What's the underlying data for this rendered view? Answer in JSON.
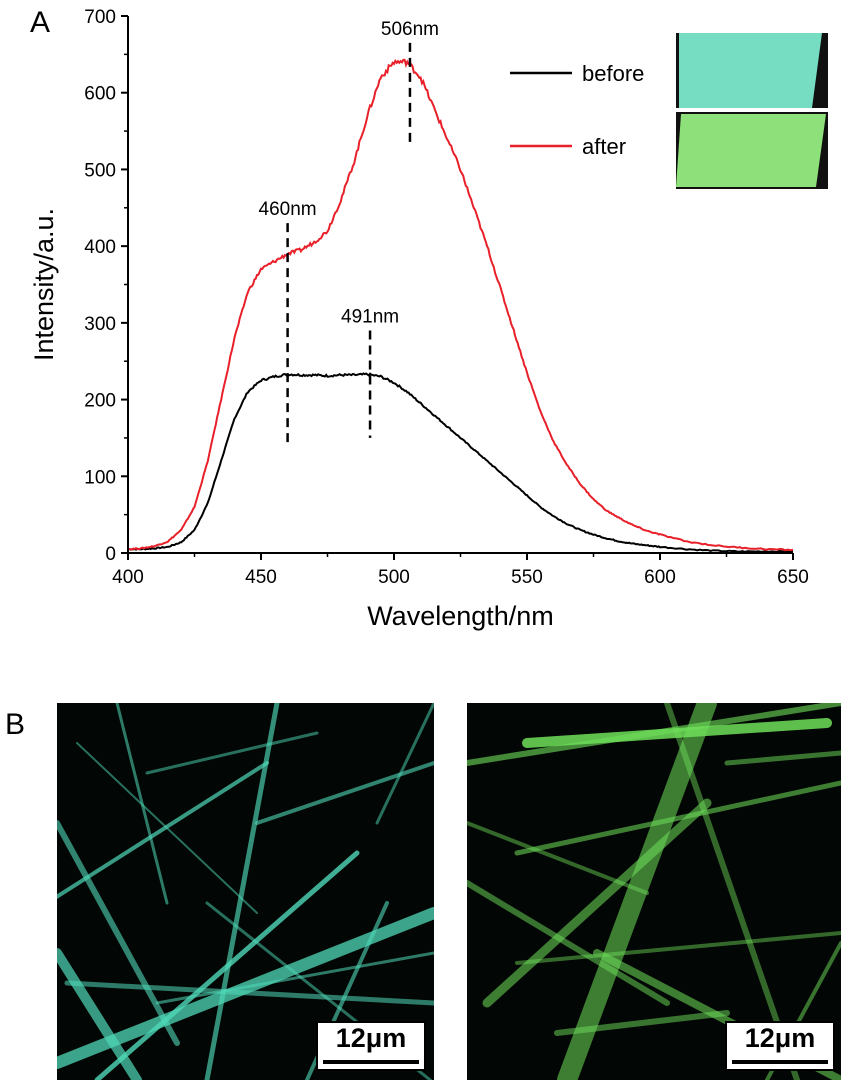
{
  "panels": {
    "a_label": "A",
    "b_label": "B"
  },
  "chart_data": {
    "type": "line",
    "xlabel": "Wavelength/nm",
    "ylabel": "Intensity/a.u.",
    "xlim": [
      400,
      650
    ],
    "ylim": [
      0,
      700
    ],
    "xticks": [
      400,
      450,
      500,
      550,
      600,
      650
    ],
    "yticks": [
      0,
      100,
      200,
      300,
      400,
      500,
      600,
      700
    ],
    "grid": false,
    "legend_position": "top-right",
    "series": [
      {
        "name": "before",
        "color": "#000000",
        "x": [
          400,
          405,
          410,
          415,
          420,
          425,
          430,
          435,
          440,
          445,
          450,
          455,
          460,
          465,
          470,
          475,
          480,
          485,
          490,
          495,
          500,
          505,
          510,
          515,
          520,
          525,
          530,
          535,
          540,
          545,
          550,
          555,
          560,
          565,
          570,
          575,
          580,
          585,
          590,
          595,
          600,
          610,
          620,
          630,
          640,
          650
        ],
        "y": [
          5,
          5,
          6,
          8,
          14,
          30,
          65,
          120,
          175,
          210,
          225,
          230,
          233,
          232,
          232,
          231,
          232,
          232,
          233,
          230,
          222,
          210,
          195,
          180,
          165,
          150,
          135,
          120,
          105,
          90,
          75,
          60,
          48,
          38,
          30,
          24,
          19,
          15,
          12,
          10,
          8,
          5,
          3,
          2,
          2,
          2
        ]
      },
      {
        "name": "after",
        "color": "#e8202a",
        "x": [
          400,
          405,
          410,
          415,
          420,
          425,
          430,
          435,
          440,
          445,
          450,
          455,
          460,
          465,
          470,
          475,
          480,
          485,
          490,
          495,
          500,
          505,
          510,
          515,
          520,
          525,
          530,
          535,
          540,
          545,
          550,
          555,
          560,
          565,
          570,
          575,
          580,
          585,
          590,
          595,
          600,
          610,
          620,
          630,
          640,
          650
        ],
        "y": [
          5,
          6,
          9,
          15,
          30,
          60,
          120,
          200,
          280,
          340,
          370,
          380,
          390,
          395,
          405,
          420,
          460,
          510,
          570,
          620,
          640,
          640,
          620,
          580,
          540,
          500,
          450,
          400,
          345,
          290,
          235,
          185,
          145,
          115,
          90,
          70,
          55,
          45,
          36,
          29,
          24,
          15,
          10,
          7,
          5,
          4
        ]
      }
    ],
    "annotations": [
      {
        "text": "460nm",
        "x": 460,
        "line_y": [
          140,
          430
        ]
      },
      {
        "text": "491nm",
        "x": 491,
        "line_y": [
          150,
          290
        ]
      },
      {
        "text": "506nm",
        "x": 506,
        "line_y": [
          530,
          665
        ]
      }
    ]
  },
  "inset": {
    "before_color": "#76dcc2",
    "after_color": "#8ee07a"
  },
  "micrographs": {
    "left_scale": "12μm",
    "right_scale": "12μm",
    "left_color": "#4fd9b8",
    "right_color": "#6fe05a"
  }
}
